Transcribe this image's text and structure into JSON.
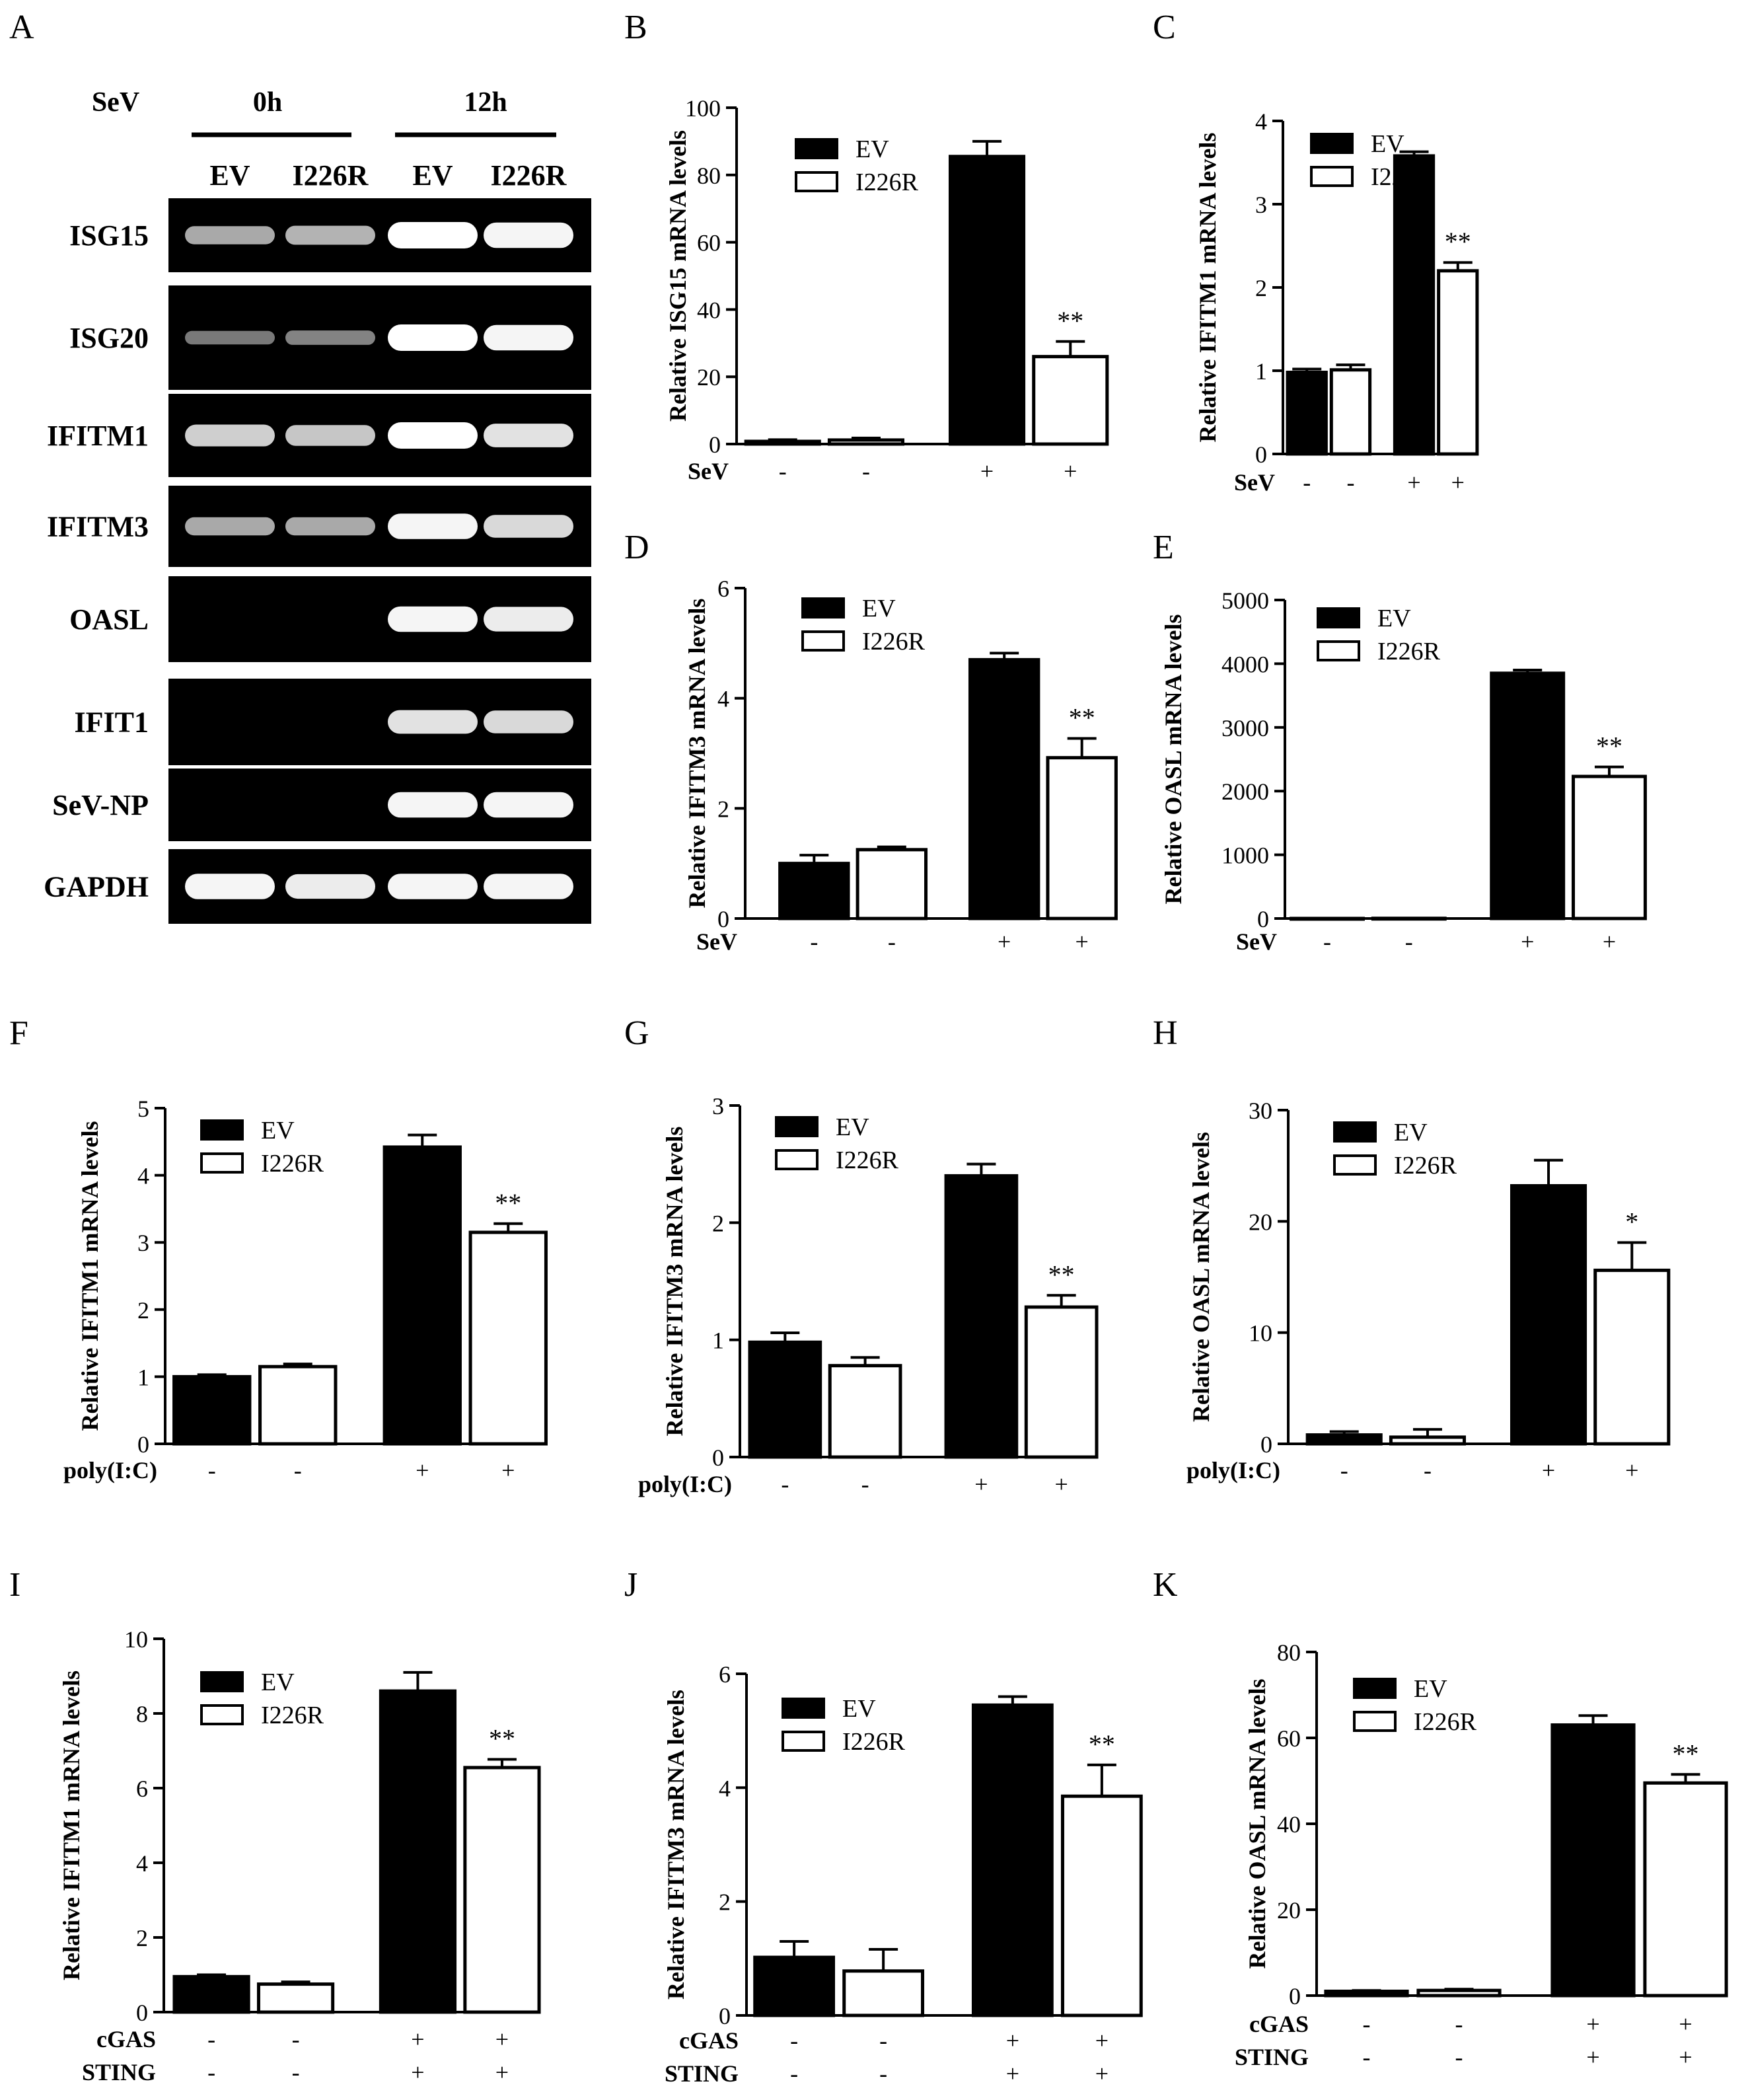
{
  "figure": {
    "panel_letters": [
      "A",
      "B",
      "C",
      "D",
      "E",
      "F",
      "G",
      "H",
      "I",
      "J",
      "K"
    ]
  },
  "gel": {
    "letter": "A",
    "treatment_label": "SeV",
    "timepoints": [
      "0h",
      "12h"
    ],
    "lanes": [
      "EV",
      "I226R",
      "EV",
      "I226R"
    ],
    "genes": [
      "ISG15",
      "ISG20",
      "IFITM1",
      "IFITM3",
      "OASL",
      "IFIT1",
      "SeV-NP",
      "GAPDH"
    ],
    "band_intensity": [
      [
        0.55,
        0.6,
        1.0,
        0.95
      ],
      [
        0.3,
        0.35,
        1.0,
        0.95
      ],
      [
        0.75,
        0.7,
        1.0,
        0.85
      ],
      [
        0.55,
        0.55,
        0.95,
        0.8
      ],
      [
        0.0,
        0.0,
        0.95,
        0.9
      ],
      [
        0.0,
        0.0,
        0.85,
        0.8
      ],
      [
        0.0,
        0.0,
        0.95,
        0.95
      ],
      [
        0.95,
        0.9,
        0.95,
        0.95
      ]
    ],
    "colors": {
      "background": "#000000",
      "band": "#ffffff"
    }
  },
  "legend_labels": [
    "EV",
    "I226R"
  ],
  "colors": {
    "ev": "#000000",
    "i226r": "#ffffff",
    "axis": "#000000"
  },
  "chart_data": [
    {
      "type": "bar",
      "letter": "B",
      "ylabel": "Relative ISG15 mRNA levels",
      "ylim": [
        0,
        100
      ],
      "yticks": [
        "0",
        "20",
        "40",
        "60",
        "80",
        "100"
      ],
      "treatments": [
        {
          "label": "SeV",
          "signs": [
            "-",
            "-",
            "+",
            "+"
          ]
        }
      ],
      "series": [
        {
          "name": "EV",
          "values": [
            0.8,
            85.5
          ],
          "errors": [
            0.5,
            4.5
          ]
        },
        {
          "name": "I226R",
          "values": [
            1.2,
            26
          ],
          "errors": [
            0.6,
            4.5
          ]
        }
      ],
      "significance": "**"
    },
    {
      "type": "bar",
      "letter": "C",
      "ylabel": "Relative IFITM1 mRNA levels",
      "ylim": [
        0,
        4
      ],
      "yticks": [
        "0",
        "1",
        "2",
        "3",
        "4"
      ],
      "treatments": [
        {
          "label": "SeV",
          "signs": [
            "-",
            "-",
            "+",
            "+"
          ]
        }
      ],
      "series": [
        {
          "name": "EV",
          "values": [
            0.98,
            3.58
          ],
          "errors": [
            0.04,
            0.05
          ]
        },
        {
          "name": "I226R",
          "values": [
            1.01,
            2.2
          ],
          "errors": [
            0.06,
            0.1
          ]
        }
      ],
      "significance": "**"
    },
    {
      "type": "bar",
      "letter": "D",
      "ylabel": "Relative IFITM3 mRNA levels",
      "ylim": [
        0,
        6
      ],
      "yticks": [
        "0",
        "2",
        "4",
        "6"
      ],
      "treatments": [
        {
          "label": "SeV",
          "signs": [
            "-",
            "-",
            "+",
            "+"
          ]
        }
      ],
      "series": [
        {
          "name": "EV",
          "values": [
            1.0,
            4.7
          ],
          "errors": [
            0.15,
            0.12
          ]
        },
        {
          "name": "I226R",
          "values": [
            1.25,
            2.92
          ],
          "errors": [
            0.05,
            0.35
          ]
        }
      ],
      "significance": "**"
    },
    {
      "type": "bar",
      "letter": "E",
      "ylabel": "Relative OASL mRNA levels",
      "ylim": [
        0,
        5000
      ],
      "yticks": [
        "0",
        "1000",
        "2000",
        "3000",
        "4000",
        "5000"
      ],
      "treatments": [
        {
          "label": "SeV",
          "signs": [
            "-",
            "-",
            "+",
            "+"
          ]
        }
      ],
      "series": [
        {
          "name": "EV",
          "values": [
            1,
            3850
          ],
          "errors": [
            0,
            50
          ]
        },
        {
          "name": "I226R",
          "values": [
            3,
            2230
          ],
          "errors": [
            2,
            150
          ]
        }
      ],
      "significance": "**"
    },
    {
      "type": "bar",
      "letter": "F",
      "ylabel": "Relative IFITM1 mRNA levels",
      "ylim": [
        0,
        5
      ],
      "yticks": [
        "0",
        "1",
        "2",
        "3",
        "4",
        "5"
      ],
      "treatments": [
        {
          "label": "poly(I:C)",
          "signs": [
            "-",
            "-",
            "+",
            "+"
          ]
        }
      ],
      "series": [
        {
          "name": "EV",
          "values": [
            1.0,
            4.42
          ],
          "errors": [
            0.03,
            0.18
          ]
        },
        {
          "name": "I226R",
          "values": [
            1.15,
            3.15
          ],
          "errors": [
            0.04,
            0.13
          ]
        }
      ],
      "significance": "**"
    },
    {
      "type": "bar",
      "letter": "G",
      "ylabel": "Relative IFITM3 mRNA levels",
      "ylim": [
        0,
        3
      ],
      "yticks": [
        "0",
        "1",
        "2",
        "3"
      ],
      "treatments": [
        {
          "label": "poly(I:C)",
          "signs": [
            "-",
            "-",
            "+",
            "+"
          ]
        }
      ],
      "series": [
        {
          "name": "EV",
          "values": [
            0.98,
            2.4
          ],
          "errors": [
            0.08,
            0.1
          ]
        },
        {
          "name": "I226R",
          "values": [
            0.78,
            1.28
          ],
          "errors": [
            0.07,
            0.1
          ]
        }
      ],
      "significance": "**"
    },
    {
      "type": "bar",
      "letter": "H",
      "ylabel": "Relative OASL mRNA levels",
      "ylim": [
        0,
        30
      ],
      "yticks": [
        "0",
        "10",
        "20",
        "30"
      ],
      "treatments": [
        {
          "label": "poly(I:C)",
          "signs": [
            "-",
            "-",
            "+",
            "+"
          ]
        }
      ],
      "series": [
        {
          "name": "EV",
          "values": [
            0.8,
            23.2
          ],
          "errors": [
            0.3,
            2.3
          ]
        },
        {
          "name": "I226R",
          "values": [
            0.6,
            15.6
          ],
          "errors": [
            0.7,
            2.5
          ]
        }
      ],
      "significance": "*"
    },
    {
      "type": "bar",
      "letter": "I",
      "ylabel": "Relative IFITM1 mRNA levels",
      "ylim": [
        0,
        10
      ],
      "yticks": [
        "0",
        "2",
        "4",
        "6",
        "8",
        "10"
      ],
      "treatments": [
        {
          "label": "cGAS",
          "signs": [
            "-",
            "-",
            "+",
            "+"
          ]
        },
        {
          "label": "STING",
          "signs": [
            "-",
            "-",
            "+",
            "+"
          ]
        }
      ],
      "series": [
        {
          "name": "EV",
          "values": [
            0.95,
            8.6
          ],
          "errors": [
            0.05,
            0.5
          ]
        },
        {
          "name": "I226R",
          "values": [
            0.75,
            6.55
          ],
          "errors": [
            0.06,
            0.22
          ]
        }
      ],
      "significance": "**"
    },
    {
      "type": "bar",
      "letter": "J",
      "ylabel": "Relative IFITM3 mRNA levels",
      "ylim": [
        0,
        6
      ],
      "yticks": [
        "0",
        "2",
        "4",
        "6"
      ],
      "treatments": [
        {
          "label": "cGAS",
          "signs": [
            "-",
            "-",
            "+",
            "+"
          ]
        },
        {
          "label": "STING",
          "signs": [
            "-",
            "-",
            "+",
            "+"
          ]
        }
      ],
      "series": [
        {
          "name": "EV",
          "values": [
            1.02,
            5.45
          ],
          "errors": [
            0.28,
            0.15
          ]
        },
        {
          "name": "I226R",
          "values": [
            0.78,
            3.85
          ],
          "errors": [
            0.38,
            0.55
          ]
        }
      ],
      "significance": "**"
    },
    {
      "type": "bar",
      "letter": "K",
      "ylabel": "Relative OASL mRNA levels",
      "ylim": [
        0,
        80
      ],
      "yticks": [
        "0",
        "20",
        "40",
        "60",
        "80"
      ],
      "treatments": [
        {
          "label": "cGAS",
          "signs": [
            "-",
            "-",
            "+",
            "+"
          ]
        },
        {
          "label": "STING",
          "signs": [
            "-",
            "-",
            "+",
            "+"
          ]
        }
      ],
      "series": [
        {
          "name": "EV",
          "values": [
            1.0,
            63
          ],
          "errors": [
            0.2,
            2.2
          ]
        },
        {
          "name": "I226R",
          "values": [
            1.2,
            49.5
          ],
          "errors": [
            0.3,
            2.0
          ]
        }
      ],
      "significance": "**"
    }
  ]
}
